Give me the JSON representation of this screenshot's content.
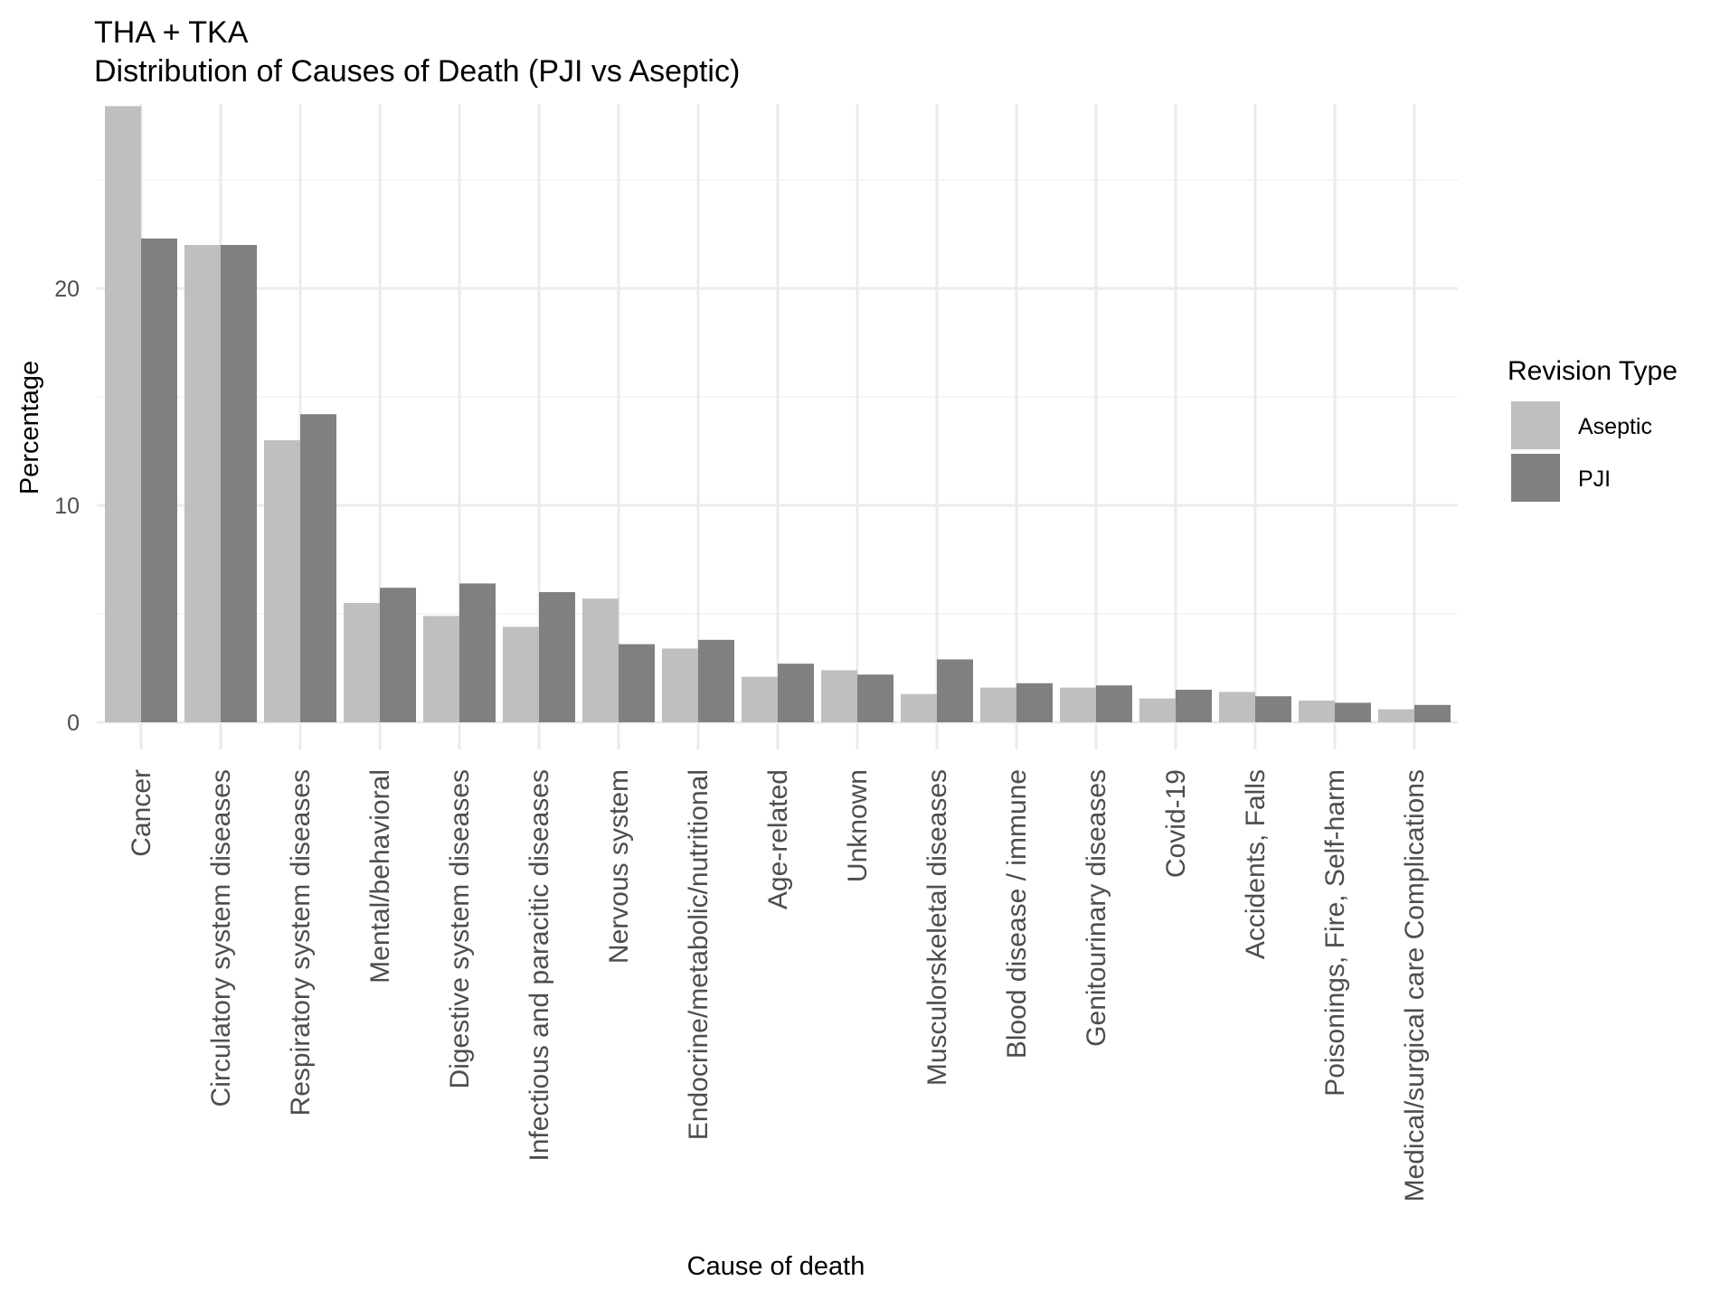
{
  "chart_data": {
    "type": "bar",
    "title": "THA + TKA",
    "subtitle": "Distribution of Causes of Death (PJI vs Aseptic)",
    "xlabel": "Cause of death",
    "ylabel": "Percentage",
    "ylim": [
      0,
      28.5
    ],
    "yticks": [
      0,
      10,
      20
    ],
    "grid": true,
    "legend": {
      "title": "Revision Type",
      "position": "right"
    },
    "categories": [
      "Cancer",
      "Circulatory system diseases",
      "Respiratory system diseases",
      "Mental/behavioral",
      "Digestive system diseases",
      "Infectious and paracitic diseases",
      "Nervous system",
      "Endocrine/metabolic/nutritional",
      "Age-related",
      "Unknown",
      "Musculorskeletal diseases",
      "Blood disease / immune",
      "Genitourinary diseases",
      "Covid-19",
      "Accidents, Falls",
      "Poisonings, Fire, Self-harm",
      "Medical/surgical care Complications"
    ],
    "series": [
      {
        "name": "Aseptic",
        "color": "#bfbfbf",
        "values": [
          28.4,
          22.0,
          13.0,
          5.5,
          4.9,
          4.4,
          5.7,
          3.4,
          2.1,
          2.4,
          1.3,
          1.6,
          1.6,
          1.1,
          1.4,
          1.0,
          0.6
        ]
      },
      {
        "name": "PJI",
        "color": "#808080",
        "values": [
          22.3,
          22.0,
          14.2,
          6.2,
          6.4,
          6.0,
          3.6,
          3.8,
          2.7,
          2.2,
          2.9,
          1.8,
          1.7,
          1.5,
          1.2,
          0.9,
          0.8
        ]
      }
    ]
  }
}
